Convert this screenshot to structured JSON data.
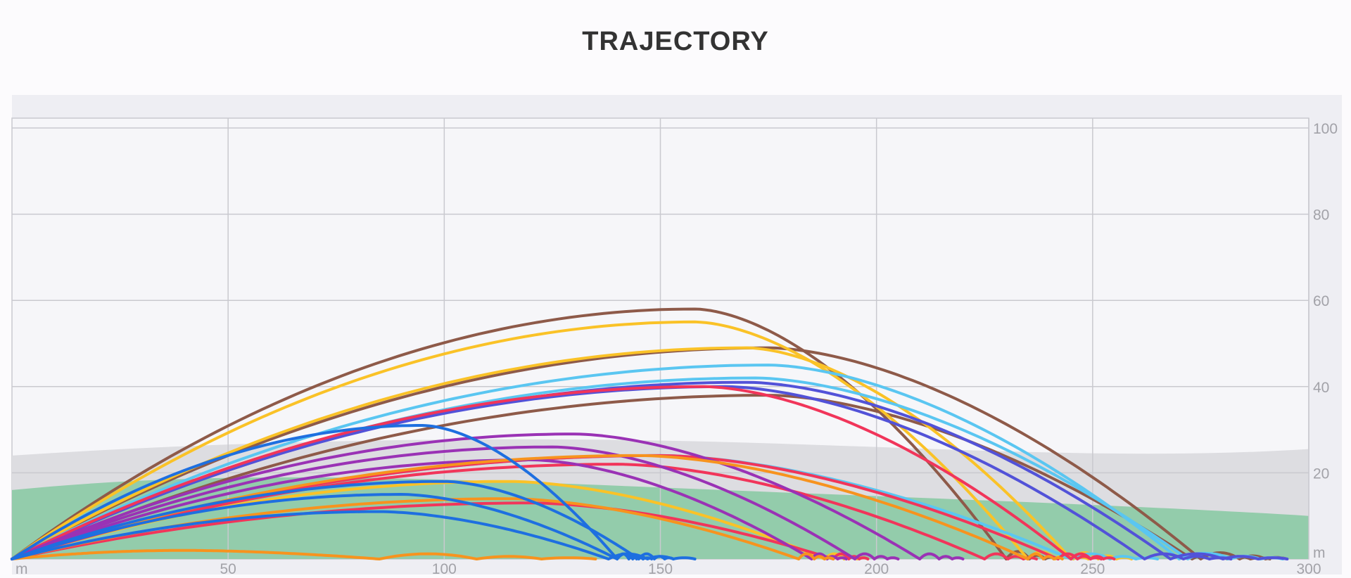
{
  "chart_data": {
    "type": "line",
    "title": "TRAJECTORY",
    "x_unit_label": "m",
    "y_unit_label": "m",
    "xlim": [
      0,
      300
    ],
    "ylim": [
      0,
      100
    ],
    "x_ticks": [
      "50",
      "100",
      "150",
      "200",
      "250",
      "300"
    ],
    "y_ticks": [
      "20",
      "40",
      "60",
      "80",
      "100"
    ],
    "grid": true,
    "legend": "none",
    "colors": {
      "plot_bg": "#f6f6f9",
      "frame_bg": "#eeeef3",
      "grid": "#c9c9cf",
      "fairway": "#93ccab",
      "rough_band": "#dddde1",
      "brown": "#8e5a49",
      "yellow": "#fac227",
      "light_blue": "#5ac6f1",
      "indigo": "#5252d8",
      "red": "#f1355a",
      "purple": "#9a32b5",
      "orange": "#f7931e",
      "blue": "#1e6fe0"
    },
    "series": [
      {
        "color": "brown",
        "carry": 230,
        "apex": 58,
        "apex_x": 158,
        "roll": 12
      },
      {
        "color": "brown",
        "carry": 275,
        "apex": 49,
        "apex_x": 175,
        "roll": 20
      },
      {
        "color": "brown",
        "carry": 273,
        "apex": 38,
        "apex_x": 175,
        "roll": 18
      },
      {
        "color": "yellow",
        "carry": 235,
        "apex": 55,
        "apex_x": 158,
        "roll": 14
      },
      {
        "color": "yellow",
        "carry": 245,
        "apex": 49,
        "apex_x": 170,
        "roll": 14
      },
      {
        "color": "yellow",
        "carry": 188,
        "apex": 18,
        "apex_x": 115,
        "roll": 10
      },
      {
        "color": "light_blue",
        "carry": 270,
        "apex": 45,
        "apex_x": 175,
        "roll": 25
      },
      {
        "color": "light_blue",
        "carry": 272,
        "apex": 42,
        "apex_x": 172,
        "roll": 22
      },
      {
        "color": "light_blue",
        "carry": 245,
        "apex": 24,
        "apex_x": 150,
        "roll": 20
      },
      {
        "color": "indigo",
        "carry": 268,
        "apex": 41,
        "apex_x": 170,
        "roll": 27
      },
      {
        "color": "indigo",
        "carry": 262,
        "apex": 40,
        "apex_x": 165,
        "roll": 20
      },
      {
        "color": "red",
        "carry": 245,
        "apex": 40,
        "apex_x": 160,
        "roll": 10
      },
      {
        "color": "red",
        "carry": 242,
        "apex": 24,
        "apex_x": 150,
        "roll": 10
      },
      {
        "color": "red",
        "carry": 225,
        "apex": 22,
        "apex_x": 140,
        "roll": 12
      },
      {
        "color": "red",
        "carry": 190,
        "apex": 13,
        "apex_x": 120,
        "roll": 8
      },
      {
        "color": "purple",
        "carry": 210,
        "apex": 29,
        "apex_x": 130,
        "roll": 10
      },
      {
        "color": "purple",
        "carry": 195,
        "apex": 26,
        "apex_x": 125,
        "roll": 10
      },
      {
        "color": "purple",
        "carry": 185,
        "apex": 23,
        "apex_x": 120,
        "roll": 8
      },
      {
        "color": "orange",
        "carry": 235,
        "apex": 24,
        "apex_x": 145,
        "roll": 8
      },
      {
        "color": "orange",
        "carry": 182,
        "apex": 14,
        "apex_x": 115,
        "roll": 8
      },
      {
        "color": "orange",
        "carry": 85,
        "apex": 2,
        "apex_x": 40,
        "roll": 50
      },
      {
        "color": "blue",
        "carry": 140,
        "apex": 31,
        "apex_x": 95,
        "roll": 8
      },
      {
        "color": "blue",
        "carry": 145,
        "apex": 18,
        "apex_x": 100,
        "roll": 8
      },
      {
        "color": "blue",
        "carry": 140,
        "apex": 15,
        "apex_x": 90,
        "roll": 6
      },
      {
        "color": "blue",
        "carry": 138,
        "apex": 11,
        "apex_x": 85,
        "roll": 20
      }
    ]
  }
}
